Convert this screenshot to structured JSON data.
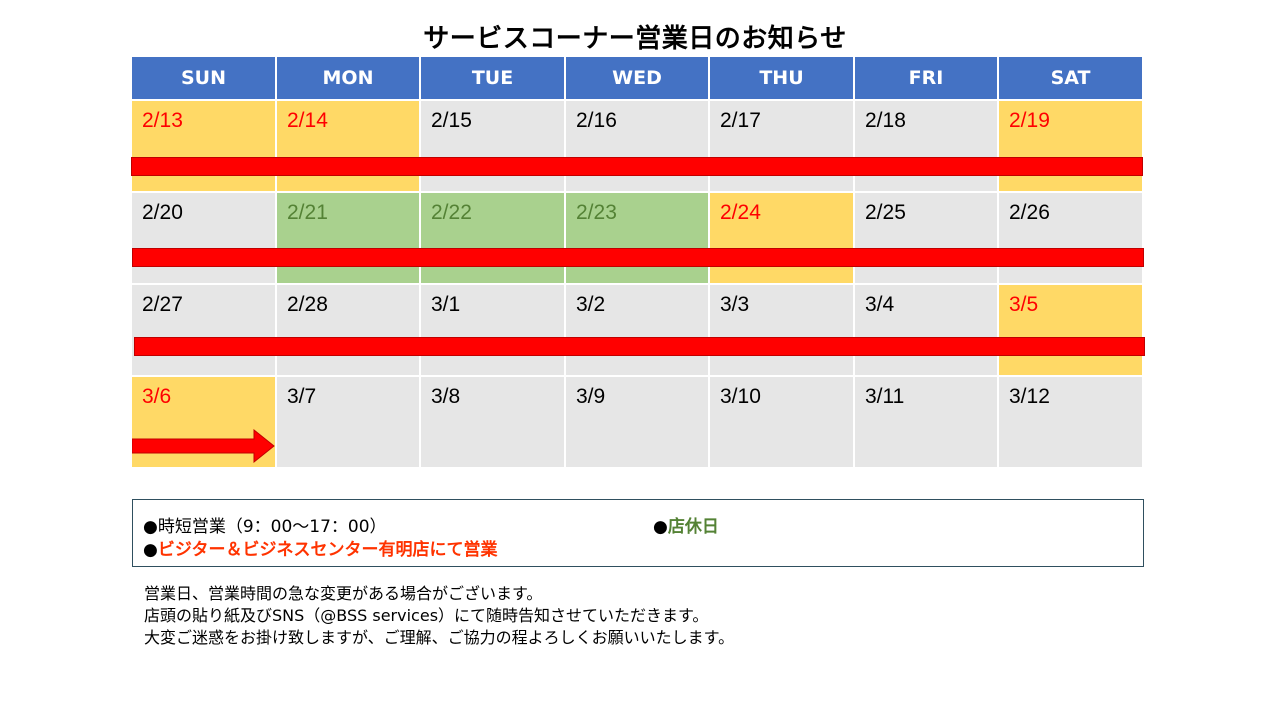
{
  "title": "サービスコーナー営業日のお知らせ",
  "weekdays": [
    "SUN",
    "MON",
    "TUE",
    "WED",
    "THU",
    "FRI",
    "SAT"
  ],
  "weeks": [
    [
      "2/13",
      "2/14",
      "2/15",
      "2/16",
      "2/17",
      "2/18",
      "2/19"
    ],
    [
      "2/20",
      "2/21",
      "2/22",
      "2/23",
      "2/24",
      "2/25",
      "2/26"
    ],
    [
      "2/27",
      "2/28",
      "3/1",
      "3/2",
      "3/3",
      "3/4",
      "3/5"
    ],
    [
      "3/6",
      "3/7",
      "3/8",
      "3/9",
      "3/10",
      "3/11",
      "3/12"
    ]
  ],
  "highlights": {
    "short_hours": [
      "2/13",
      "2/14",
      "2/19",
      "2/24",
      "3/5",
      "3/6"
    ],
    "closed": [
      "2/21",
      "2/22",
      "2/23"
    ]
  },
  "colors": {
    "header": "#4472c4",
    "normal": "#e6e6e6",
    "short_hours": "#ffd966",
    "closed": "#a9d18e",
    "relocation_bar": "#ff0000"
  },
  "legend": {
    "bullet": "●",
    "short_hours": "時短営業（9：00～17：00）",
    "closed": "店休日",
    "relocation": "ビジター＆ビジネスセンター有明店にて営業"
  },
  "notes": [
    "営業日、営業時間の急な変更がある場合がございます。",
    "店頭の貼り紙及びSNS（@BSS services）にて随時告知させていただきます。",
    "大変ご迷惑をお掛け致しますが、ご理解、ご協力の程よろしくお願いいたします。"
  ]
}
